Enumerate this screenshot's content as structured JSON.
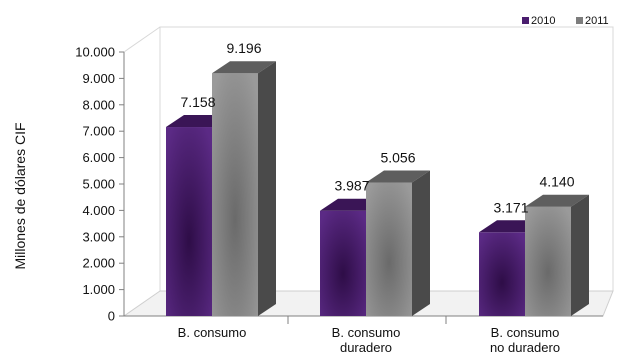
{
  "chart_data": {
    "type": "bar",
    "categories": [
      [
        "B. consumo"
      ],
      [
        "B. consumo",
        "duradero"
      ],
      [
        "B. consumo",
        "no duradero"
      ]
    ],
    "series": [
      {
        "name": "2010",
        "values": [
          7158,
          3987,
          3171
        ],
        "labels": [
          "7.158",
          "3.987",
          "3.171"
        ],
        "color": "#4a1d6e"
      },
      {
        "name": "2011",
        "values": [
          9196,
          5056,
          4140
        ],
        "labels": [
          "9.196",
          "5.056",
          "4.140"
        ],
        "color": "#7d7d7d"
      }
    ],
    "ylabel": "Millones de dólares CIF",
    "ylim": [
      0,
      10000
    ],
    "yticks": [
      {
        "value": 0,
        "label": "0"
      },
      {
        "value": 1000,
        "label": "1.000"
      },
      {
        "value": 2000,
        "label": "2.000"
      },
      {
        "value": 3000,
        "label": "3.000"
      },
      {
        "value": 4000,
        "label": "4.000"
      },
      {
        "value": 5000,
        "label": "5.000"
      },
      {
        "value": 6000,
        "label": "6.000"
      },
      {
        "value": 7000,
        "label": "7.000"
      },
      {
        "value": 8000,
        "label": "8.000"
      },
      {
        "value": 9000,
        "label": "9.000"
      },
      {
        "value": 10000,
        "label": "10.000"
      }
    ],
    "legend_position": "top-right",
    "grid": false,
    "style": "3d"
  }
}
